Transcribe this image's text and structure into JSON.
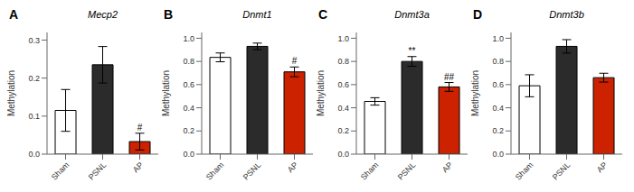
{
  "chart_data": [
    {
      "type": "bar",
      "panel_label": "A",
      "title": "Mecp2",
      "y_label": "Methylation",
      "categories": [
        "Sham",
        "PSNL",
        "AP"
      ],
      "values": [
        0.115,
        0.235,
        0.033
      ],
      "errors": [
        0.055,
        0.048,
        0.022
      ],
      "colors": [
        "#ffffff",
        "#2b2b2b",
        "#cc2200"
      ],
      "ylim": [
        0,
        0.32
      ],
      "yticks": [
        {
          "value": 0.0,
          "label": "0.0"
        },
        0.1,
        0.2,
        0.3
      ],
      "annotations": [
        {
          "x": "AP",
          "text": "#"
        }
      ]
    },
    {
      "type": "bar",
      "panel_label": "B",
      "title": "Dnmt1",
      "y_label": "Methylation",
      "categories": [
        "Sham",
        "PSNL",
        "AP"
      ],
      "values": [
        0.835,
        0.93,
        0.71
      ],
      "errors": [
        0.038,
        0.028,
        0.042
      ],
      "colors": [
        "#ffffff",
        "#2b2b2b",
        "#cc2200"
      ],
      "ylim": [
        0,
        1.05
      ],
      "yticks": [
        {
          "value": 0.0,
          "label": "0.0"
        },
        0.2,
        0.4,
        0.6,
        0.8,
        {
          "value": 1.0,
          "label": "1.0"
        }
      ],
      "annotations": [
        {
          "x": "AP",
          "text": "#"
        }
      ]
    },
    {
      "type": "bar",
      "panel_label": "C",
      "title": "Dnmt3a",
      "y_label": "Methylation",
      "categories": [
        "Sham",
        "PSNL",
        "AP"
      ],
      "values": [
        0.455,
        0.8,
        0.58
      ],
      "errors": [
        0.032,
        0.042,
        0.038
      ],
      "colors": [
        "#ffffff",
        "#2b2b2b",
        "#cc2200"
      ],
      "ylim": [
        0,
        1.05
      ],
      "yticks": [
        {
          "value": 0.0,
          "label": "0.0"
        },
        0.2,
        0.4,
        0.6,
        0.8,
        {
          "value": 1.0,
          "label": "1.0"
        }
      ],
      "annotations": [
        {
          "x": "PSNL",
          "text": "**"
        },
        {
          "x": "AP",
          "text": "##"
        }
      ]
    },
    {
      "type": "bar",
      "panel_label": "D",
      "title": "Dnmt3b",
      "y_label": "Methylation",
      "categories": [
        "Sham",
        "PSNL",
        "AP"
      ],
      "values": [
        0.59,
        0.93,
        0.66
      ],
      "errors": [
        0.095,
        0.058,
        0.038
      ],
      "colors": [
        "#ffffff",
        "#2b2b2b",
        "#cc2200"
      ],
      "ylim": [
        0,
        1.05
      ],
      "yticks": [
        {
          "value": 0.0,
          "label": "0.0"
        },
        0.2,
        0.4,
        0.6,
        0.8,
        {
          "value": 1.0,
          "label": "1.0"
        }
      ],
      "annotations": []
    }
  ]
}
